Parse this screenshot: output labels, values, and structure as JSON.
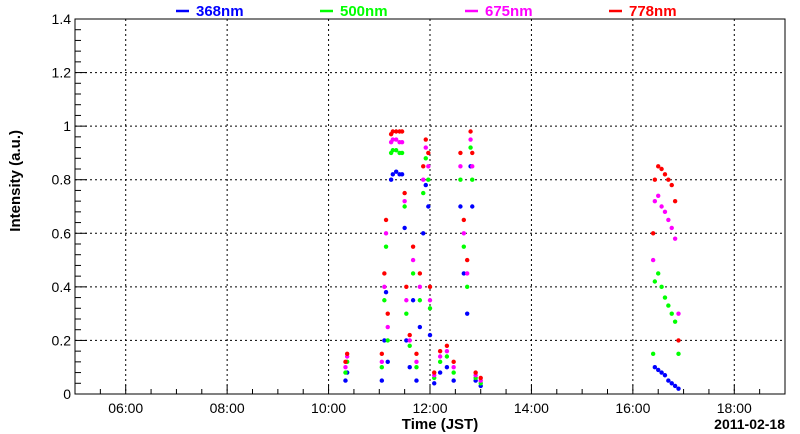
{
  "chart_data": {
    "type": "scatter",
    "xlabel": "Time (JST)",
    "ylabel": "Intensity (a.u.)",
    "date_label": "2011-02-18",
    "xlim": [
      "05:00",
      "19:00"
    ],
    "ylim": [
      0,
      1.4
    ],
    "x_ticks": [
      "06:00",
      "08:00",
      "10:00",
      "12:00",
      "14:00",
      "16:00",
      "18:00"
    ],
    "y_ticks": [
      "0",
      "0.2",
      "0.4",
      "0.6",
      "0.8",
      "1",
      "1.2",
      "1.4"
    ],
    "grid": true,
    "legend_position": "top",
    "series": [
      {
        "name": "368nm",
        "color": "#0000ff",
        "points": [
          [
            "10:20",
            0.05
          ],
          [
            "10:22",
            0.08
          ],
          [
            "11:03",
            0.05
          ],
          [
            "11:06",
            0.2
          ],
          [
            "11:08",
            0.38
          ],
          [
            "11:10",
            0.12
          ],
          [
            "11:14",
            0.8
          ],
          [
            "11:16",
            0.82
          ],
          [
            "11:20",
            0.83
          ],
          [
            "11:24",
            0.82
          ],
          [
            "11:27",
            0.82
          ],
          [
            "11:30",
            0.62
          ],
          [
            "11:32",
            0.2
          ],
          [
            "11:36",
            0.1
          ],
          [
            "11:40",
            0.35
          ],
          [
            "11:44",
            0.05
          ],
          [
            "11:48",
            0.25
          ],
          [
            "11:52",
            0.6
          ],
          [
            "11:55",
            0.78
          ],
          [
            "11:58",
            0.7
          ],
          [
            "12:00",
            0.22
          ],
          [
            "12:05",
            0.04
          ],
          [
            "12:12",
            0.08
          ],
          [
            "12:20",
            0.1
          ],
          [
            "12:28",
            0.05
          ],
          [
            "12:36",
            0.7
          ],
          [
            "12:40",
            0.45
          ],
          [
            "12:44",
            0.3
          ],
          [
            "12:48",
            0.85
          ],
          [
            "12:50",
            0.7
          ],
          [
            "12:54",
            0.05
          ],
          [
            "13:00",
            0.03
          ],
          [
            "16:26",
            0.1
          ],
          [
            "16:30",
            0.09
          ],
          [
            "16:34",
            0.08
          ],
          [
            "16:38",
            0.07
          ],
          [
            "16:42",
            0.05
          ],
          [
            "16:46",
            0.04
          ],
          [
            "16:50",
            0.03
          ],
          [
            "16:54",
            0.02
          ]
        ]
      },
      {
        "name": "500nm",
        "color": "#00ff00",
        "points": [
          [
            "10:20",
            0.08
          ],
          [
            "10:22",
            0.12
          ],
          [
            "11:03",
            0.1
          ],
          [
            "11:06",
            0.35
          ],
          [
            "11:08",
            0.55
          ],
          [
            "11:10",
            0.2
          ],
          [
            "11:14",
            0.9
          ],
          [
            "11:16",
            0.91
          ],
          [
            "11:20",
            0.91
          ],
          [
            "11:24",
            0.9
          ],
          [
            "11:27",
            0.9
          ],
          [
            "11:30",
            0.7
          ],
          [
            "11:32",
            0.3
          ],
          [
            "11:36",
            0.18
          ],
          [
            "11:40",
            0.45
          ],
          [
            "11:44",
            0.1
          ],
          [
            "11:48",
            0.35
          ],
          [
            "11:52",
            0.75
          ],
          [
            "11:55",
            0.88
          ],
          [
            "11:58",
            0.8
          ],
          [
            "12:00",
            0.32
          ],
          [
            "12:05",
            0.06
          ],
          [
            "12:12",
            0.12
          ],
          [
            "12:20",
            0.14
          ],
          [
            "12:28",
            0.08
          ],
          [
            "12:36",
            0.8
          ],
          [
            "12:40",
            0.55
          ],
          [
            "12:44",
            0.4
          ],
          [
            "12:48",
            0.92
          ],
          [
            "12:50",
            0.8
          ],
          [
            "12:54",
            0.06
          ],
          [
            "13:00",
            0.04
          ],
          [
            "16:24",
            0.15
          ],
          [
            "16:26",
            0.42
          ],
          [
            "16:30",
            0.45
          ],
          [
            "16:34",
            0.4
          ],
          [
            "16:38",
            0.36
          ],
          [
            "16:42",
            0.33
          ],
          [
            "16:46",
            0.3
          ],
          [
            "16:50",
            0.27
          ],
          [
            "16:54",
            0.15
          ]
        ]
      },
      {
        "name": "675nm",
        "color": "#ff00ff",
        "points": [
          [
            "10:20",
            0.1
          ],
          [
            "10:22",
            0.14
          ],
          [
            "11:03",
            0.12
          ],
          [
            "11:06",
            0.4
          ],
          [
            "11:08",
            0.6
          ],
          [
            "11:10",
            0.25
          ],
          [
            "11:14",
            0.94
          ],
          [
            "11:16",
            0.95
          ],
          [
            "11:20",
            0.95
          ],
          [
            "11:24",
            0.94
          ],
          [
            "11:27",
            0.94
          ],
          [
            "11:30",
            0.72
          ],
          [
            "11:32",
            0.35
          ],
          [
            "11:36",
            0.2
          ],
          [
            "11:40",
            0.5
          ],
          [
            "11:44",
            0.12
          ],
          [
            "11:48",
            0.4
          ],
          [
            "11:52",
            0.8
          ],
          [
            "11:55",
            0.92
          ],
          [
            "11:58",
            0.85
          ],
          [
            "12:00",
            0.35
          ],
          [
            "12:05",
            0.07
          ],
          [
            "12:12",
            0.14
          ],
          [
            "12:20",
            0.16
          ],
          [
            "12:28",
            0.1
          ],
          [
            "12:36",
            0.85
          ],
          [
            "12:40",
            0.6
          ],
          [
            "12:44",
            0.45
          ],
          [
            "12:48",
            0.95
          ],
          [
            "12:50",
            0.85
          ],
          [
            "12:54",
            0.07
          ],
          [
            "13:00",
            0.05
          ],
          [
            "16:24",
            0.5
          ],
          [
            "16:26",
            0.72
          ],
          [
            "16:30",
            0.74
          ],
          [
            "16:34",
            0.7
          ],
          [
            "16:38",
            0.68
          ],
          [
            "16:42",
            0.65
          ],
          [
            "16:46",
            0.62
          ],
          [
            "16:50",
            0.58
          ],
          [
            "16:54",
            0.3
          ]
        ]
      },
      {
        "name": "778nm",
        "color": "#ff0000",
        "points": [
          [
            "10:20",
            0.12
          ],
          [
            "10:22",
            0.15
          ],
          [
            "11:03",
            0.15
          ],
          [
            "11:06",
            0.45
          ],
          [
            "11:08",
            0.65
          ],
          [
            "11:10",
            0.3
          ],
          [
            "11:14",
            0.97
          ],
          [
            "11:16",
            0.98
          ],
          [
            "11:20",
            0.98
          ],
          [
            "11:24",
            0.98
          ],
          [
            "11:27",
            0.98
          ],
          [
            "11:30",
            0.75
          ],
          [
            "11:32",
            0.4
          ],
          [
            "11:36",
            0.22
          ],
          [
            "11:40",
            0.55
          ],
          [
            "11:44",
            0.15
          ],
          [
            "11:48",
            0.45
          ],
          [
            "11:52",
            0.85
          ],
          [
            "11:55",
            0.95
          ],
          [
            "11:58",
            0.9
          ],
          [
            "12:00",
            0.4
          ],
          [
            "12:05",
            0.08
          ],
          [
            "12:12",
            0.16
          ],
          [
            "12:20",
            0.18
          ],
          [
            "12:28",
            0.12
          ],
          [
            "12:36",
            0.9
          ],
          [
            "12:40",
            0.65
          ],
          [
            "12:44",
            0.5
          ],
          [
            "12:48",
            0.98
          ],
          [
            "12:50",
            0.9
          ],
          [
            "12:54",
            0.08
          ],
          [
            "13:00",
            0.06
          ],
          [
            "16:24",
            0.6
          ],
          [
            "16:26",
            0.8
          ],
          [
            "16:30",
            0.85
          ],
          [
            "16:34",
            0.84
          ],
          [
            "16:38",
            0.82
          ],
          [
            "16:42",
            0.8
          ],
          [
            "16:46",
            0.78
          ],
          [
            "16:50",
            0.72
          ],
          [
            "16:54",
            0.2
          ]
        ]
      }
    ]
  }
}
